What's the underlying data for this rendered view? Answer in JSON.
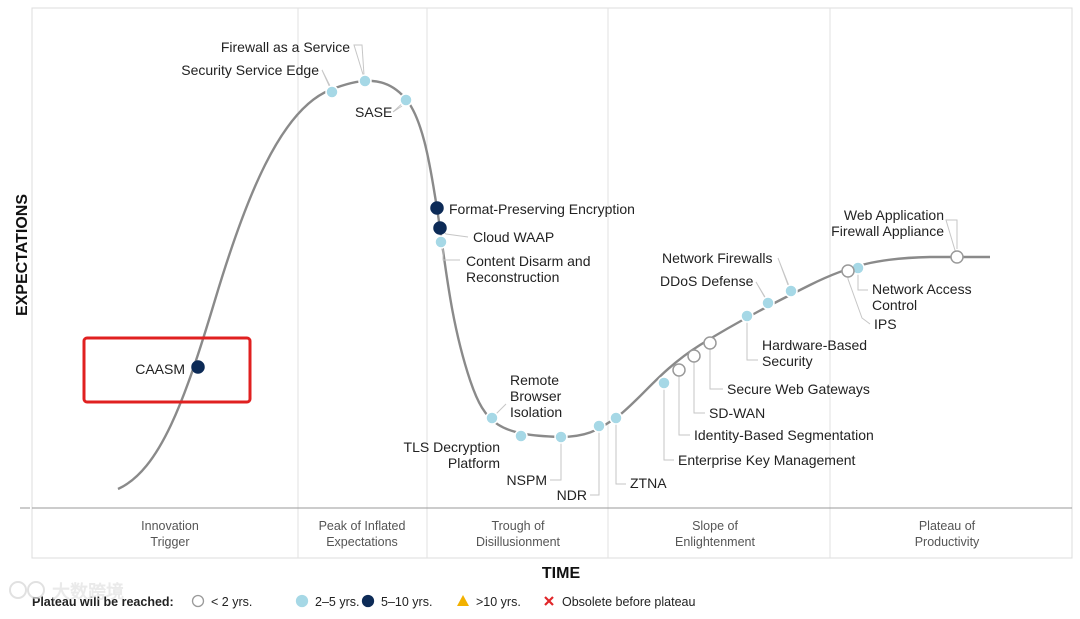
{
  "axis": {
    "y_label": "EXPECTATIONS",
    "x_label": "TIME"
  },
  "phases": [
    [
      "Innovation",
      "Trigger"
    ],
    [
      "Peak of Inflated",
      "Expectations"
    ],
    [
      "Trough of",
      "Disillusionment"
    ],
    [
      "Slope of",
      "Enlightenment"
    ],
    [
      "Plateau of",
      "Productivity"
    ]
  ],
  "technologies": [
    {
      "name": [
        "CAASM"
      ],
      "plateau": "5–10 yrs.",
      "highlighted": true
    },
    {
      "name": [
        "Security Service Edge"
      ],
      "plateau": "2–5 yrs."
    },
    {
      "name": [
        "Firewall as a Service"
      ],
      "plateau": "2–5 yrs."
    },
    {
      "name": [
        "SASE"
      ],
      "plateau": "2–5 yrs."
    },
    {
      "name": [
        "Format-Preserving Encryption"
      ],
      "plateau": "5–10 yrs."
    },
    {
      "name": [
        "Cloud WAAP"
      ],
      "plateau": "5–10 yrs."
    },
    {
      "name": [
        "Content Disarm and",
        "Reconstruction"
      ],
      "plateau": "2–5 yrs."
    },
    {
      "name": [
        "Remote",
        "Browser",
        "Isolation"
      ],
      "plateau": "2–5 yrs."
    },
    {
      "name": [
        "TLS Decryption",
        "Platform"
      ],
      "plateau": "2–5 yrs."
    },
    {
      "name": [
        "NSPM"
      ],
      "plateau": "2–5 yrs."
    },
    {
      "name": [
        "NDR"
      ],
      "plateau": "2–5 yrs."
    },
    {
      "name": [
        "ZTNA"
      ],
      "plateau": "2–5 yrs."
    },
    {
      "name": [
        "Enterprise Key Management"
      ],
      "plateau": "2–5 yrs."
    },
    {
      "name": [
        "Identity-Based Segmentation"
      ],
      "plateau": "< 2 yrs."
    },
    {
      "name": [
        "SD-WAN"
      ],
      "plateau": "< 2 yrs."
    },
    {
      "name": [
        "Secure Web Gateways"
      ],
      "plateau": "< 2 yrs."
    },
    {
      "name": [
        "Hardware-Based",
        "Security"
      ],
      "plateau": "2–5 yrs."
    },
    {
      "name": [
        "DDoS Defense"
      ],
      "plateau": "2–5 yrs."
    },
    {
      "name": [
        "Network Firewalls"
      ],
      "plateau": "2–5 yrs."
    },
    {
      "name": [
        "Network Access",
        "Control"
      ],
      "plateau": "2–5 yrs."
    },
    {
      "name": [
        "IPS"
      ],
      "plateau": "< 2 yrs."
    },
    {
      "name": [
        "Web Application",
        "Firewall Appliance"
      ],
      "plateau": "< 2 yrs."
    }
  ],
  "legend": {
    "title": "Plateau will be reached:",
    "items": [
      {
        "label": "< 2 yrs.",
        "symbol": "circle",
        "color": "#ffffff"
      },
      {
        "label": "2–5 yrs.",
        "symbol": "circle",
        "color": "#a6d8e6"
      },
      {
        "label": "5–10 yrs.",
        "symbol": "circle",
        "color": "#0d2b57"
      },
      {
        "label": ">10 yrs.",
        "symbol": "triangle",
        "color": "#f2b100"
      },
      {
        "label": "Obsolete before plateau",
        "symbol": "x",
        "color": "#e0262a"
      }
    ]
  },
  "watermark": "大数跨境",
  "colors": {
    "curve": "#8a8a8a",
    "highlight": "#e02020",
    "grid": "#dcdcdc"
  }
}
